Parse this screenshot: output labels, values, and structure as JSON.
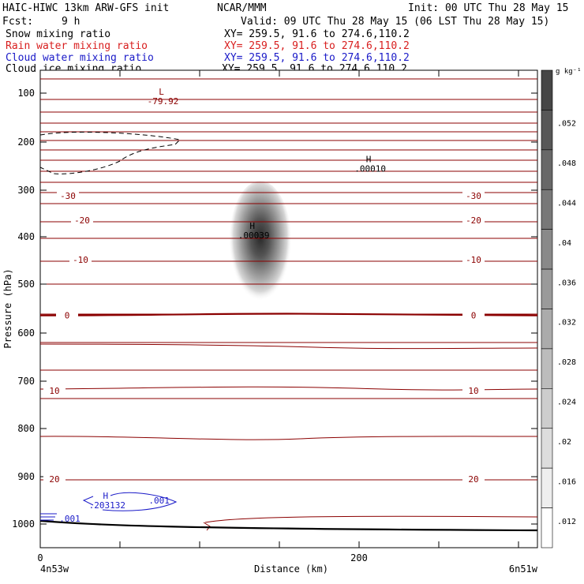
{
  "header": {
    "model": "HAIC-HIWC 13km ARW-GFS init",
    "center": "NCAR/MMM",
    "init": "Init: 00 UTC Thu 28 May 15",
    "fcst_label": "Fcst:",
    "fcst_value": "9 h",
    "valid": "Valid: 09 UTC Thu 28 May 15 (06 LST Thu 28 May 15)",
    "fields": [
      {
        "name": "Snow mixing ratio",
        "xy": "XY= 259.5, 91.6 to 274.6,110.2",
        "color": "#000000"
      },
      {
        "name": "Rain water mixing ratio",
        "xy": "XY= 259.5, 91.6 to 274.6,110.2",
        "color": "#d81e1e"
      },
      {
        "name": "Cloud water mixing ratio",
        "xy": "XY= 259.5, 91.6 to 274.6,110.2",
        "color": "#1a1ac8"
      },
      {
        "name": "Cloud ice mixing ratio",
        "xy": "XY= 259.5, 91.6 to 274.6,110.2",
        "color": "#000000"
      }
    ]
  },
  "chart_data": {
    "type": "contour-cross-section",
    "xlabel": "Distance (km)",
    "ylabel": "Pressure (hPa)",
    "x_ticks": [
      0,
      200
    ],
    "x_minor_ticks": [
      50,
      100,
      150,
      250,
      300
    ],
    "x_range_km": [
      0,
      300
    ],
    "y_ticks": [
      100,
      200,
      300,
      400,
      500,
      600,
      700,
      800,
      900,
      1000
    ],
    "y_range_hpa": [
      90,
      1050
    ],
    "endpoint_left": "4n53w",
    "endpoint_right": "6n51w",
    "colorbar": {
      "unit": "g kg⁻¹",
      "labels": [
        ".052",
        ".048",
        ".044",
        ".04",
        ".036",
        ".032",
        ".028",
        ".024",
        ".02",
        ".016",
        ".012"
      ],
      "levels": [
        0.052,
        0.048,
        0.044,
        0.04,
        0.036,
        0.032,
        0.028,
        0.024,
        0.02,
        0.016,
        0.012
      ]
    },
    "temperature_contours": {
      "color": "#8b0000",
      "labels": [
        {
          "text": "-30",
          "side": "left",
          "p": 312
        },
        {
          "text": "-30",
          "side": "right",
          "p": 312
        },
        {
          "text": "-20",
          "side": "left",
          "p": 364
        },
        {
          "text": "-20",
          "side": "right",
          "p": 364
        },
        {
          "text": "-10",
          "side": "left",
          "p": 448
        },
        {
          "text": "-10",
          "side": "right",
          "p": 448
        },
        {
          "text": "0",
          "side": "left",
          "p": 564
        },
        {
          "text": "0",
          "side": "right",
          "p": 564
        },
        {
          "text": "10",
          "side": "left",
          "p": 720
        },
        {
          "text": "10",
          "side": "right",
          "p": 720
        },
        {
          "text": "20",
          "side": "left",
          "p": 905
        },
        {
          "text": "20",
          "side": "right",
          "p": 905
        }
      ],
      "zero_line_p": 564
    },
    "extrema": [
      {
        "kind": "L",
        "value": "-79.92",
        "x_km": 76,
        "p": 113,
        "color": "#8b0000"
      },
      {
        "kind": "H",
        "value": ".00010",
        "x_km": 206,
        "p": 252,
        "color": "#000000"
      },
      {
        "kind": "H",
        "value": ".00039",
        "x_km": 133,
        "p": 393,
        "color": "#000000"
      },
      {
        "kind": "H",
        "value": ".203132",
        "x_km": 41,
        "p": 957,
        "color": "#1a1ac8"
      }
    ],
    "cloud_water_labels": [
      {
        "text": ".001",
        "x_km": 68,
        "p": 950
      },
      {
        "text": ".001",
        "x_km": 12,
        "p": 988
      }
    ],
    "snow_max": {
      "x_km": 138,
      "p": 422,
      "value": 0.05
    }
  }
}
